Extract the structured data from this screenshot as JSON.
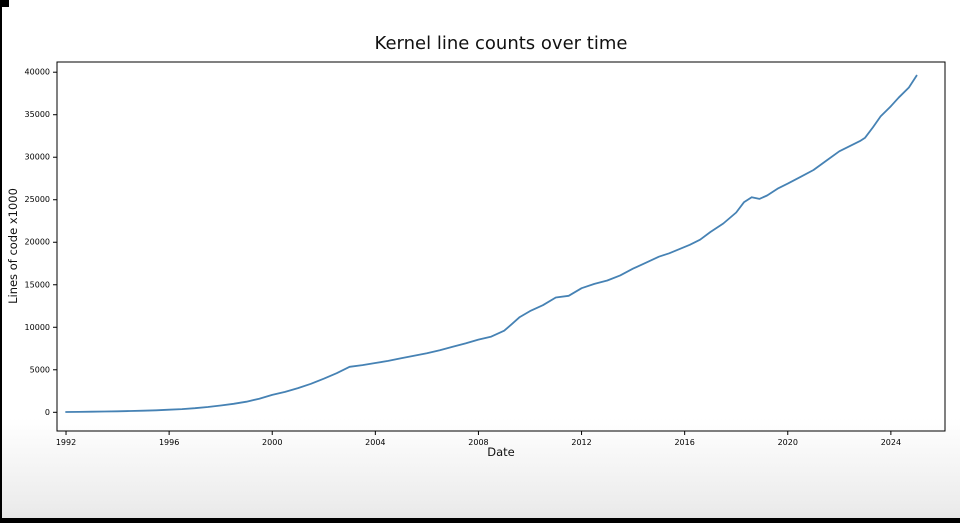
{
  "page": {
    "background": "#ffffff",
    "letterbox_color": "#000000"
  },
  "chart_data": {
    "type": "line",
    "title": "Kernel line counts over time",
    "xlabel": "Date",
    "ylabel": "Lines of code x1000",
    "x_ticks": [
      1992,
      1996,
      2000,
      2004,
      2008,
      2012,
      2016,
      2020,
      2024
    ],
    "y_ticks": [
      0,
      5000,
      10000,
      15000,
      20000,
      25000,
      30000,
      35000,
      40000
    ],
    "xlim": [
      1991.65,
      2026.1
    ],
    "ylim": [
      -2200,
      41200
    ],
    "grid": false,
    "legend": "none",
    "line_color": "#4682b4",
    "axis_color": "#000000",
    "series": [
      {
        "name": "kernel-line-count",
        "x": [
          1992.0,
          1992.5,
          1993.0,
          1993.5,
          1994.0,
          1994.5,
          1995.0,
          1995.5,
          1996.0,
          1996.5,
          1997.0,
          1997.5,
          1998.0,
          1998.5,
          1999.0,
          1999.5,
          2000.0,
          2000.5,
          2001.0,
          2001.5,
          2002.0,
          2002.5,
          2003.0,
          2003.5,
          2004.0,
          2004.5,
          2005.0,
          2005.5,
          2006.0,
          2006.5,
          2007.0,
          2007.5,
          2008.0,
          2008.5,
          2009.0,
          2009.3,
          2009.6,
          2010.0,
          2010.5,
          2011.0,
          2011.5,
          2012.0,
          2012.5,
          2013.0,
          2013.5,
          2014.0,
          2014.5,
          2015.0,
          2015.4,
          2015.8,
          2016.2,
          2016.6,
          2017.0,
          2017.5,
          2018.0,
          2018.3,
          2018.6,
          2018.9,
          2019.2,
          2019.6,
          2020.0,
          2020.5,
          2021.0,
          2021.5,
          2022.0,
          2022.4,
          2022.8,
          2023.0,
          2023.3,
          2023.6,
          2024.0,
          2024.3,
          2024.7,
          2025.0
        ],
        "y": [
          30,
          45,
          65,
          90,
          120,
          150,
          190,
          240,
          300,
          380,
          480,
          620,
          800,
          1000,
          1250,
          1600,
          2050,
          2400,
          2850,
          3350,
          3950,
          4600,
          5350,
          5550,
          5800,
          6050,
          6350,
          6650,
          6950,
          7300,
          7700,
          8100,
          8550,
          8900,
          9600,
          10400,
          11200,
          11900,
          12600,
          13500,
          13700,
          14600,
          15100,
          15500,
          16100,
          16900,
          17600,
          18300,
          18700,
          19200,
          19700,
          20300,
          21200,
          22200,
          23500,
          24700,
          25300,
          25100,
          25500,
          26300,
          26900,
          27700,
          28500,
          29600,
          30700,
          31300,
          31900,
          32300,
          33500,
          34800,
          36000,
          37000,
          38200,
          39600
        ]
      }
    ]
  }
}
